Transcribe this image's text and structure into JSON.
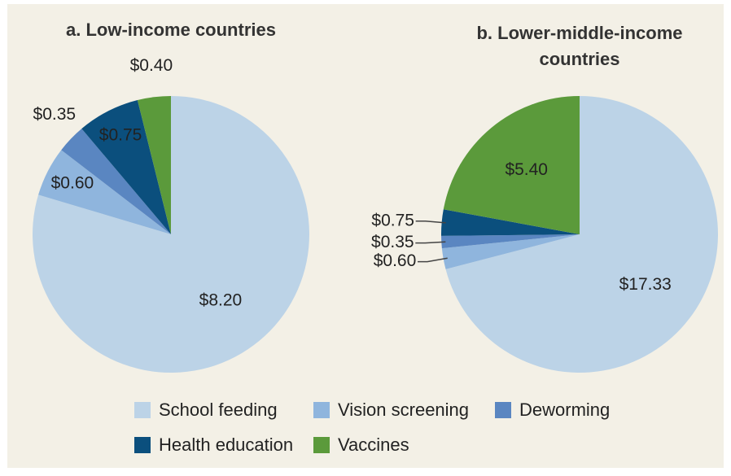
{
  "chart_data": [
    {
      "type": "pie",
      "title": "a. Low-income countries",
      "values": [
        8.2,
        0.6,
        0.35,
        0.75,
        0.4
      ],
      "value_labels": [
        "$8.20",
        "$0.60",
        "$0.35",
        "$0.75",
        "$0.40"
      ]
    },
    {
      "type": "pie",
      "title": "b. Lower-middle-income countries",
      "values": [
        17.33,
        0.6,
        0.35,
        0.75,
        5.4
      ],
      "value_labels": [
        "$17.33",
        "$0.60",
        "$0.35",
        "$0.75",
        "$5.40"
      ]
    }
  ],
  "legend": {
    "categories": [
      "School feeding",
      "Vision screening",
      "Deworming",
      "Health education",
      "Vaccines"
    ],
    "colors": [
      "#bcd3e7",
      "#8fb5dd",
      "#5a86c1",
      "#0b4f7d",
      "#5b9a3b"
    ]
  }
}
